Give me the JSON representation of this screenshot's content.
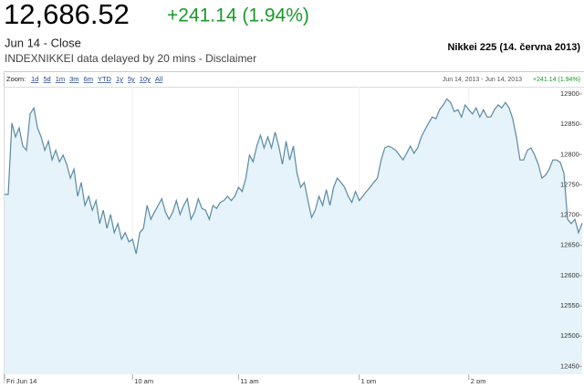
{
  "header": {
    "price": "12,686.52",
    "change": "+241.14 (1.94%)",
    "close_label": "Jun 14 - Close",
    "source": "INDEXNIKKEI data delayed by 20 mins - Disclaimer",
    "index_name": "Nikkei 225 (14. června 2013)"
  },
  "toolbar": {
    "zoom_label": "Zoom:",
    "zoom_options": [
      "1d",
      "5d",
      "1m",
      "3m",
      "6m",
      "YTD",
      "1y",
      "5y",
      "10y",
      "All"
    ],
    "range": "Jun 14, 2013 - Jun 14, 2013",
    "change": "+241.14 (1.94%)"
  },
  "chart_data": {
    "type": "area",
    "color": "#5a8aa3",
    "fill": "#e6f3fa",
    "values": [
      12734,
      12734,
      12852,
      12829,
      12844,
      12814,
      12807,
      12867,
      12877,
      12844,
      12829,
      12807,
      12822,
      12791,
      12807,
      12788,
      12799,
      12784,
      12761,
      12776,
      12731,
      12754,
      12716,
      12731,
      12708,
      12724,
      12686,
      12708,
      12678,
      12701,
      12671,
      12686,
      12660,
      12671,
      12656,
      12660,
      12636,
      12671,
      12678,
      12716,
      12693,
      12705,
      12716,
      12727,
      12705,
      12693,
      12705,
      12724,
      12701,
      12716,
      12727,
      12693,
      12705,
      12727,
      12711,
      12708,
      12693,
      12716,
      12711,
      12721,
      12724,
      12731,
      12724,
      12731,
      12746,
      12739,
      12761,
      12799,
      12788,
      12814,
      12832,
      12811,
      12829,
      12811,
      12837,
      12814,
      12784,
      12822,
      12791,
      12814,
      12769,
      12746,
      12754,
      12724,
      12696,
      12708,
      12731,
      12716,
      12742,
      12716,
      12746,
      12761,
      12754,
      12746,
      12731,
      12721,
      12739,
      12724,
      12731,
      12739,
      12746,
      12754,
      12761,
      12791,
      12811,
      12814,
      12811,
      12807,
      12799,
      12791,
      12802,
      12814,
      12802,
      12811,
      12829,
      12841,
      12852,
      12862,
      12859,
      12874,
      12882,
      12892,
      12886,
      12871,
      12874,
      12862,
      12882,
      12874,
      12867,
      12877,
      12862,
      12874,
      12862,
      12862,
      12874,
      12882,
      12877,
      12886,
      12877,
      12859,
      12829,
      12791,
      12791,
      12807,
      12811,
      12799,
      12784,
      12761,
      12766,
      12776,
      12791,
      12791,
      12787,
      12769,
      12693,
      12686,
      12693,
      12671,
      12686.52
    ],
    "xlim": [
      0,
      158
    ],
    "xticks": [
      {
        "value": 0,
        "label": "Fri Jun 14"
      },
      {
        "value": 35,
        "label": "10 am"
      },
      {
        "value": 64,
        "label": "11 am"
      },
      {
        "value": 97,
        "label": "1 pm"
      },
      {
        "value": 127,
        "label": "2 pm"
      }
    ],
    "ylim": [
      12437,
      12912
    ],
    "yticks": [
      12450,
      12500,
      12550,
      12600,
      12650,
      12700,
      12750,
      12800,
      12850,
      12900
    ]
  }
}
